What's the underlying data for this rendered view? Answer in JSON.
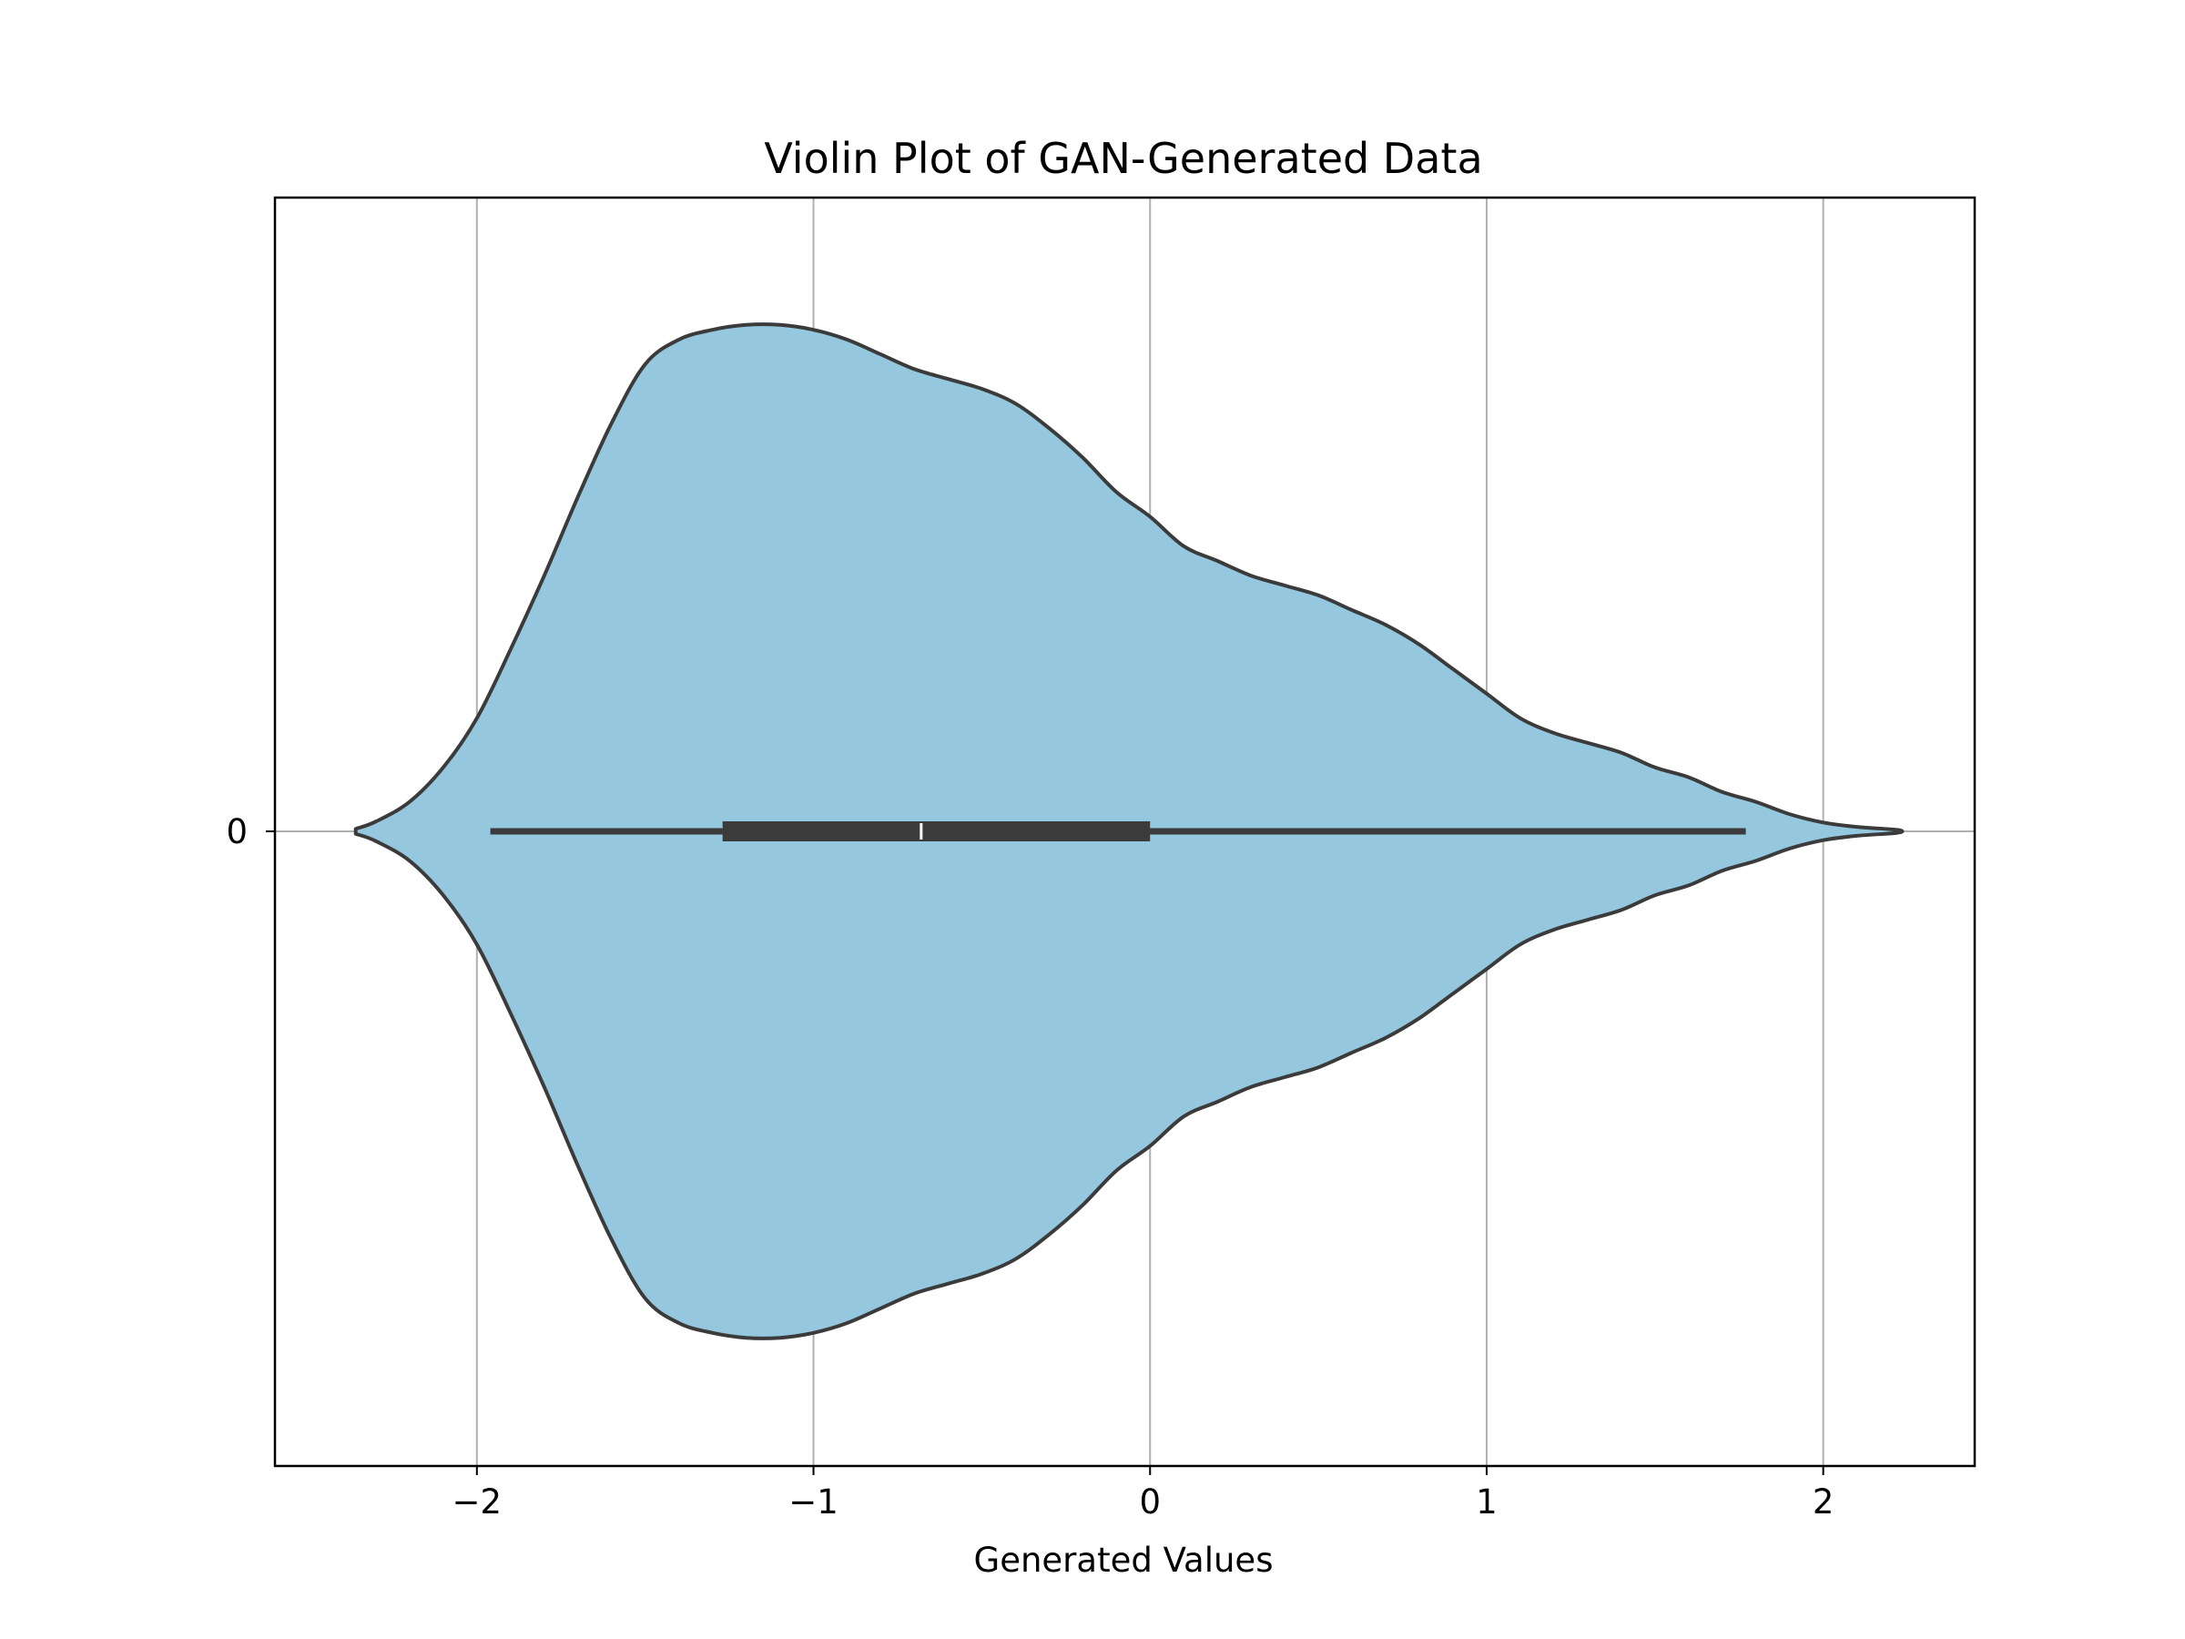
{
  "chart_data": {
    "type": "violin",
    "title": "Violin Plot of GAN-Generated Data",
    "xlabel": "Generated Values",
    "ylabel": "",
    "orientation": "horizontal",
    "xlim": [
      -2.6,
      2.45
    ],
    "x_ticks": [
      -2,
      -1,
      0,
      1,
      2
    ],
    "x_tick_labels": [
      "−2",
      "−1",
      "0",
      "1",
      "2"
    ],
    "y_tick_labels": [
      "0"
    ],
    "grid": true,
    "colors": {
      "fill": "#95c8de",
      "outline": "#3b3b3b",
      "box": "#3b3b3b",
      "median": "#ffffff",
      "grid": "#b0b0b0",
      "frame": "#000000"
    },
    "box": {
      "whisker_low": -1.96,
      "q1": -1.27,
      "median": -0.68,
      "q3": 0.0,
      "whisker_high": 1.77
    },
    "density": {
      "x": [
        -2.36,
        -2.3,
        -2.2,
        -2.1,
        -2.0,
        -1.9,
        -1.8,
        -1.7,
        -1.6,
        -1.5,
        -1.4,
        -1.3,
        -1.2,
        -1.1,
        -1.0,
        -0.9,
        -0.8,
        -0.7,
        -0.6,
        -0.5,
        -0.4,
        -0.3,
        -0.2,
        -0.1,
        0.0,
        0.1,
        0.2,
        0.3,
        0.4,
        0.5,
        0.6,
        0.7,
        0.8,
        0.9,
        1.0,
        1.1,
        1.2,
        1.3,
        1.4,
        1.5,
        1.6,
        1.7,
        1.8,
        1.9,
        2.0,
        2.1,
        2.22
      ],
      "width": [
        0.005,
        0.02,
        0.06,
        0.13,
        0.23,
        0.37,
        0.52,
        0.68,
        0.83,
        0.95,
        1.0,
        1.02,
        1.03,
        1.03,
        1.02,
        1.0,
        0.97,
        0.94,
        0.92,
        0.9,
        0.87,
        0.82,
        0.76,
        0.69,
        0.64,
        0.58,
        0.55,
        0.52,
        0.5,
        0.48,
        0.45,
        0.42,
        0.38,
        0.33,
        0.28,
        0.23,
        0.2,
        0.18,
        0.16,
        0.13,
        0.11,
        0.08,
        0.06,
        0.035,
        0.018,
        0.009,
        0.003
      ]
    }
  }
}
